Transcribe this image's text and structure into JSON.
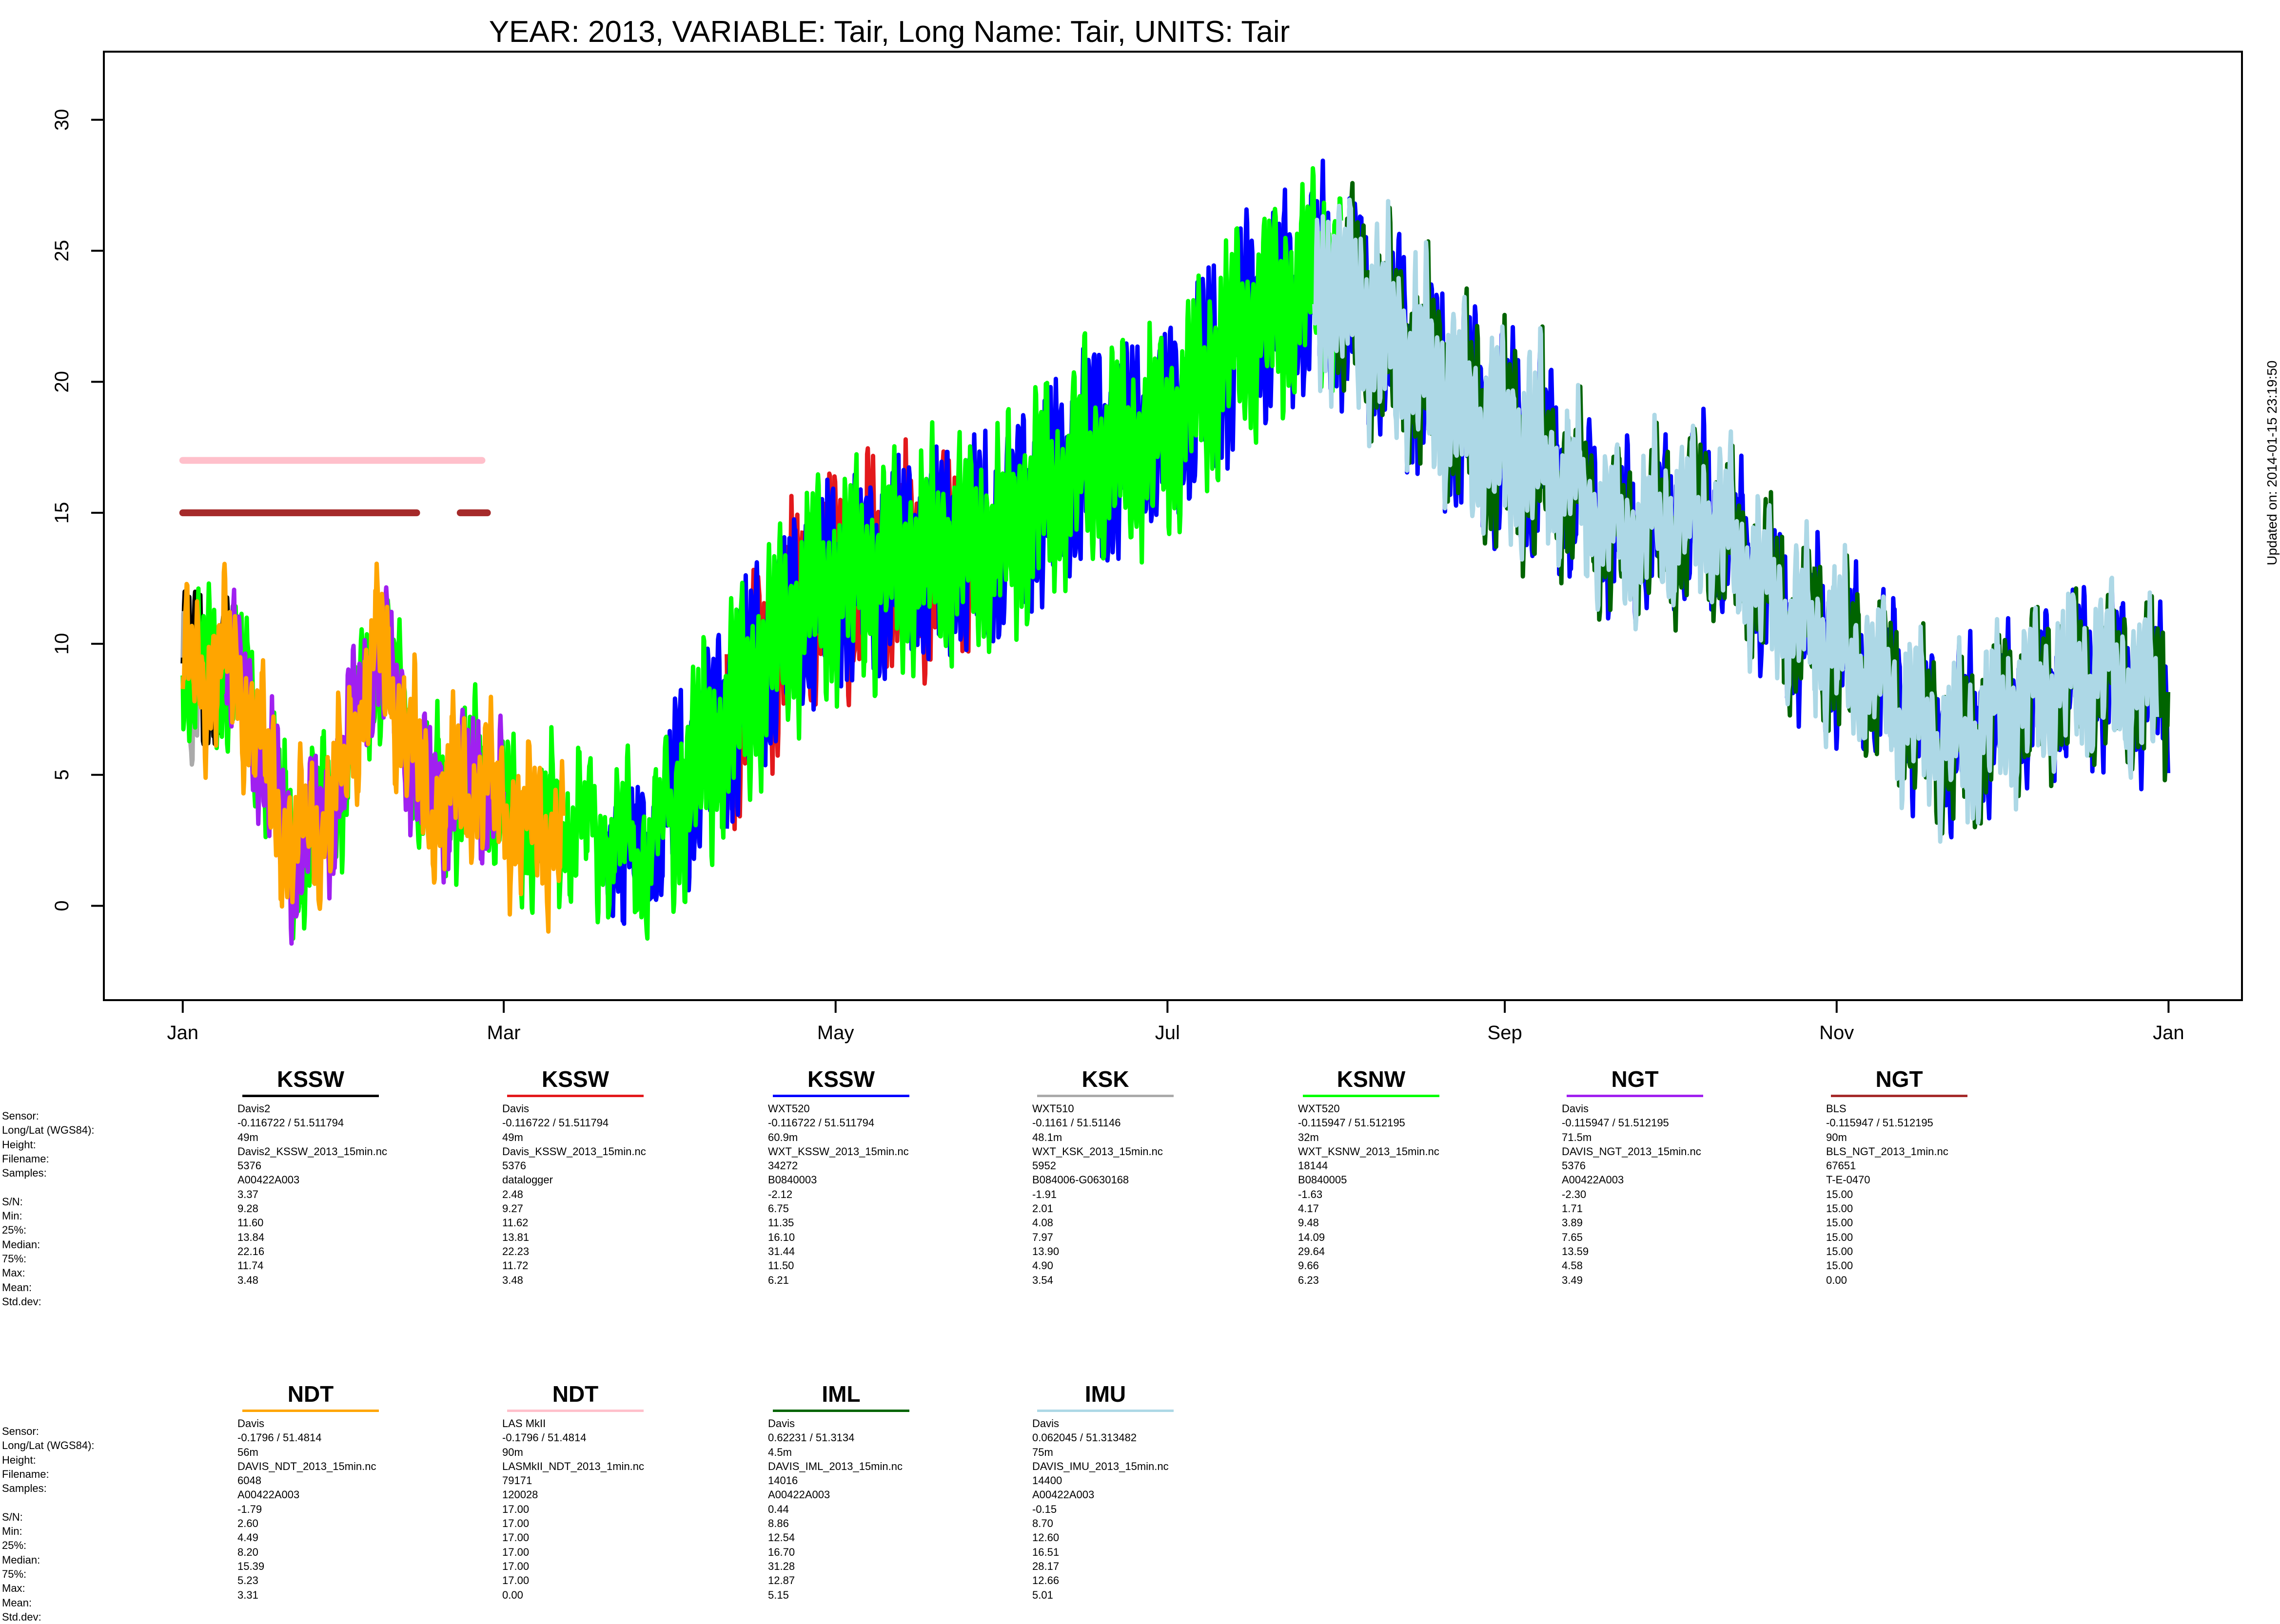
{
  "chart_data": {
    "type": "scatter",
    "title": "YEAR: 2013, VARIABLE: Tair, Long Name: Tair, UNITS: Tair",
    "xlabel": "",
    "ylabel": "",
    "x_tick_labels": [
      "Jan",
      "Mar",
      "May",
      "Jul",
      "Sep",
      "Nov",
      "Jan"
    ],
    "x_tick_days": [
      0,
      59,
      120,
      181,
      243,
      304,
      365
    ],
    "y_ticks": [
      0,
      5,
      10,
      15,
      20,
      25,
      30
    ],
    "ylim": [
      -3.6,
      32.6
    ],
    "xlim_days": [
      -14.5,
      378.5
    ],
    "grid": false,
    "updated_text": "Updated on: 2014-01-15 23:19:50",
    "series": [
      {
        "name": "KSSW",
        "color": "#000000",
        "segments": [
          [
            0,
            10,
            0
          ]
        ]
      },
      {
        "name": "KSSW",
        "color": "#e3191c",
        "segments": [
          [
            100,
            114,
            2
          ],
          [
            115,
            145,
            2
          ]
        ]
      },
      {
        "name": "KSSW",
        "color": "#0000ff",
        "segments": [
          [
            78,
            102,
            1
          ],
          [
            100,
            214,
            2
          ],
          [
            214,
            300,
            3
          ],
          [
            300,
            365,
            4
          ]
        ]
      },
      {
        "name": "KSK",
        "color": "#aaaaaa",
        "segments": [
          [
            0,
            3,
            0
          ]
        ]
      },
      {
        "name": "KSNW",
        "color": "#00ff00",
        "segments": [
          [
            0,
            59,
            0
          ],
          [
            59,
            96,
            1
          ],
          [
            96,
            213,
            2
          ]
        ]
      },
      {
        "name": "NGT",
        "color": "#a020f0",
        "segments": [
          [
            8,
            59,
            0
          ]
        ]
      },
      {
        "name": "NGT",
        "color": "#a52a2a",
        "segments": [
          [
            0,
            43,
            5
          ],
          [
            51,
            56,
            5
          ]
        ]
      },
      {
        "name": "NDT",
        "color": "#ffa500",
        "segments": [
          [
            0,
            70,
            0
          ]
        ]
      },
      {
        "name": "NDT",
        "color": "#ffc0cb",
        "segments": [
          [
            0,
            55,
            6
          ]
        ]
      },
      {
        "name": "IML",
        "color": "#006400",
        "segments": [
          [
            212,
            300,
            3
          ],
          [
            300,
            365,
            4
          ]
        ]
      },
      {
        "name": "IMU",
        "color": "#add8e6",
        "segments": [
          [
            208,
            300,
            3
          ],
          [
            300,
            363,
            4
          ]
        ]
      }
    ],
    "trend_knots": [
      {
        "day": 0,
        "y": 9
      },
      {
        "day": 10,
        "y": 9
      },
      {
        "day": 20,
        "y": 2
      },
      {
        "day": 28,
        "y": 4
      },
      {
        "day": 36,
        "y": 10
      },
      {
        "day": 45,
        "y": 4
      },
      {
        "day": 55,
        "y": 5
      },
      {
        "day": 62,
        "y": 3
      },
      {
        "day": 72,
        "y": 3
      },
      {
        "day": 85,
        "y": 2
      },
      {
        "day": 100,
        "y": 7
      },
      {
        "day": 115,
        "y": 12
      },
      {
        "day": 130,
        "y": 13
      },
      {
        "day": 150,
        "y": 14
      },
      {
        "day": 165,
        "y": 17
      },
      {
        "day": 180,
        "y": 18
      },
      {
        "day": 195,
        "y": 22
      },
      {
        "day": 210,
        "y": 24
      },
      {
        "day": 225,
        "y": 21
      },
      {
        "day": 240,
        "y": 18
      },
      {
        "day": 250,
        "y": 17
      },
      {
        "day": 265,
        "y": 14
      },
      {
        "day": 280,
        "y": 15
      },
      {
        "day": 295,
        "y": 11
      },
      {
        "day": 310,
        "y": 9
      },
      {
        "day": 325,
        "y": 6
      },
      {
        "day": 340,
        "y": 8
      },
      {
        "day": 350,
        "y": 9
      },
      {
        "day": 365,
        "y": 8
      }
    ]
  },
  "legend_row_labels": [
    "Sensor:",
    "Long/Lat (WGS84):",
    "Height:",
    "Filename:",
    "Samples:",
    "",
    "S/N:",
    "Min:",
    "25%:",
    "Median:",
    "75%:",
    "Max:",
    "Mean:",
    "Std.dev:"
  ],
  "legend": [
    {
      "station": "KSSW",
      "color": "#000000",
      "values": [
        "Davis2",
        "-0.116722 / 51.511794",
        "49m",
        "Davis2_KSSW_2013_15min.nc",
        "5376",
        "A00422A003",
        "3.37",
        "9.28",
        "11.60",
        "13.84",
        "22.16",
        "11.74",
        "3.48"
      ]
    },
    {
      "station": "KSSW",
      "color": "#e3191c",
      "values": [
        "Davis",
        "-0.116722 / 51.511794",
        "49m",
        "Davis_KSSW_2013_15min.nc",
        "5376",
        "datalogger",
        "2.48",
        "9.27",
        "11.62",
        "13.81",
        "22.23",
        "11.72",
        "3.48"
      ]
    },
    {
      "station": "KSSW",
      "color": "#0000ff",
      "values": [
        "WXT520",
        "-0.116722 / 51.511794",
        "60.9m",
        "WXT_KSSW_2013_15min.nc",
        "34272",
        "B0840003",
        "-2.12",
        "6.75",
        "11.35",
        "16.10",
        "31.44",
        "11.50",
        "6.21"
      ]
    },
    {
      "station": "KSK",
      "color": "#aaaaaa",
      "values": [
        "WXT510",
        "-0.1161 / 51.51146",
        "48.1m",
        "WXT_KSK_2013_15min.nc",
        "5952",
        "B084006-G0630168",
        "-1.91",
        "2.01",
        "4.08",
        "7.97",
        "13.90",
        "4.90",
        "3.54"
      ]
    },
    {
      "station": "KSNW",
      "color": "#00ff00",
      "values": [
        "WXT520",
        "-0.115947 / 51.512195",
        "32m",
        "WXT_KSNW_2013_15min.nc",
        "18144",
        "B0840005",
        "-1.63",
        "4.17",
        "9.48",
        "14.09",
        "29.64",
        "9.66",
        "6.23"
      ]
    },
    {
      "station": "NGT",
      "color": "#a020f0",
      "values": [
        "Davis",
        "-0.115947 / 51.512195",
        "71.5m",
        "DAVIS_NGT_2013_15min.nc",
        "5376",
        "A00422A003",
        "-2.30",
        "1.71",
        "3.89",
        "7.65",
        "13.59",
        "4.58",
        "3.49"
      ]
    },
    {
      "station": "NGT",
      "color": "#a52a2a",
      "values": [
        "BLS",
        "-0.115947 / 51.512195",
        "90m",
        "BLS_NGT_2013_1min.nc",
        "67651",
        "T-E-0470",
        "15.00",
        "15.00",
        "15.00",
        "15.00",
        "15.00",
        "15.00",
        "0.00"
      ]
    },
    {
      "station": "NDT",
      "color": "#ffa500",
      "values": [
        "Davis",
        "-0.1796 / 51.4814",
        "56m",
        "DAVIS_NDT_2013_15min.nc",
        "6048",
        "A00422A003",
        "-1.79",
        "2.60",
        "4.49",
        "8.20",
        "15.39",
        "5.23",
        "3.31"
      ]
    },
    {
      "station": "NDT",
      "color": "#ffc0cb",
      "values": [
        "LAS MkII",
        "-0.1796 / 51.4814",
        "90m",
        "LASMkII_NDT_2013_1min.nc",
        "79171",
        "120028",
        "17.00",
        "17.00",
        "17.00",
        "17.00",
        "17.00",
        "17.00",
        "0.00"
      ]
    },
    {
      "station": "IML",
      "color": "#006400",
      "values": [
        "Davis",
        "0.62231 / 51.3134",
        "4.5m",
        "DAVIS_IML_2013_15min.nc",
        "14016",
        "A00422A003",
        "0.44",
        "8.86",
        "12.54",
        "16.70",
        "31.28",
        "12.87",
        "5.15"
      ]
    },
    {
      "station": "IMU",
      "color": "#add8e6",
      "values": [
        "Davis",
        "0.062045 / 51.313482",
        "75m",
        "DAVIS_IMU_2013_15min.nc",
        "14400",
        "A00422A003",
        "-0.15",
        "8.70",
        "12.60",
        "16.51",
        "28.17",
        "12.66",
        "5.01"
      ]
    }
  ]
}
